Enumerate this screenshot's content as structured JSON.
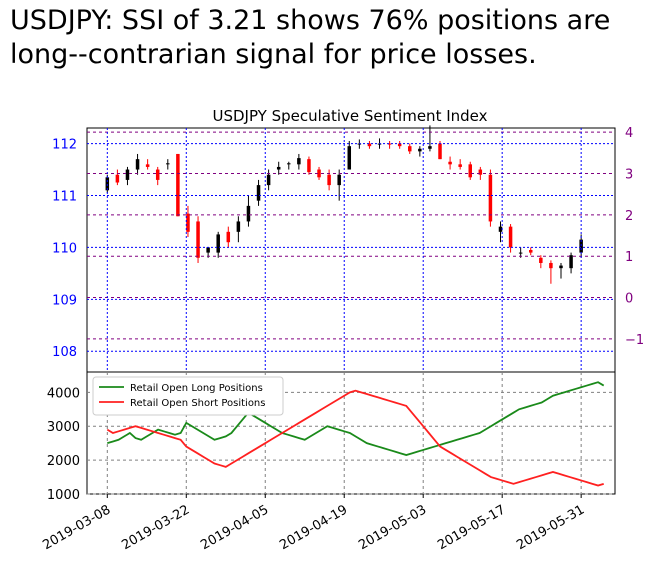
{
  "headline": "USDJPY: SSI of 3.21 shows 76% positions are long--contrarian signal for price losses.",
  "colors": {
    "price_axis": "#0000ff",
    "ssi_axis": "#800080",
    "up_candle": "#000000",
    "down_candle": "#ff0000",
    "ssi_positive": "#2ca02c",
    "ssi_negative": "#ff6b6b",
    "long_line": "#1a8a1a",
    "short_line": "#ff2020"
  },
  "chart_data": [
    {
      "type": "candlestick",
      "title": "USDJPY Speculative Sentiment Index",
      "left_axis": {
        "range": [
          107.6,
          112.3
        ],
        "ticks": [
          108,
          109,
          110,
          111,
          112
        ]
      },
      "right_axis": {
        "range": [
          -1.8,
          4.1
        ],
        "ticks": [
          -1,
          0,
          1,
          2,
          3,
          4
        ],
        "tick_labels": [
          "−1",
          "0",
          "1",
          "2",
          "3",
          "4"
        ]
      },
      "x_range_days": [
        -1.8,
        47.0
      ],
      "candles": [
        {
          "d": 1,
          "o": 111.1,
          "h": 111.4,
          "l": 111.05,
          "c": 111.35
        },
        {
          "d": 2,
          "o": 111.4,
          "h": 111.5,
          "l": 111.2,
          "c": 111.25
        },
        {
          "d": 3,
          "o": 111.3,
          "h": 111.55,
          "l": 111.2,
          "c": 111.5
        },
        {
          "d": 4,
          "o": 111.5,
          "h": 111.8,
          "l": 111.4,
          "c": 111.7
        },
        {
          "d": 5,
          "o": 111.6,
          "h": 111.7,
          "l": 111.5,
          "c": 111.55
        },
        {
          "d": 6,
          "o": 111.5,
          "h": 111.55,
          "l": 111.2,
          "c": 111.3
        },
        {
          "d": 7,
          "o": 111.6,
          "h": 111.7,
          "l": 111.5,
          "c": 111.62
        },
        {
          "d": 8,
          "o": 111.8,
          "h": 111.8,
          "l": 110.6,
          "c": 110.6
        },
        {
          "d": 9,
          "o": 110.65,
          "h": 110.8,
          "l": 110.2,
          "c": 110.3
        },
        {
          "d": 10,
          "o": 110.5,
          "h": 110.6,
          "l": 109.7,
          "c": 109.8
        },
        {
          "d": 11,
          "o": 109.9,
          "h": 110.0,
          "l": 109.8,
          "c": 110.0
        },
        {
          "d": 12,
          "o": 109.9,
          "h": 110.3,
          "l": 109.8,
          "c": 110.25
        },
        {
          "d": 13,
          "o": 110.3,
          "h": 110.4,
          "l": 110.0,
          "c": 110.1
        },
        {
          "d": 14,
          "o": 110.3,
          "h": 110.6,
          "l": 110.1,
          "c": 110.5
        },
        {
          "d": 15,
          "o": 110.5,
          "h": 111.0,
          "l": 110.4,
          "c": 110.8
        },
        {
          "d": 16,
          "o": 110.9,
          "h": 111.3,
          "l": 110.8,
          "c": 111.2
        },
        {
          "d": 17,
          "o": 111.2,
          "h": 111.5,
          "l": 111.1,
          "c": 111.4
        },
        {
          "d": 18,
          "o": 111.5,
          "h": 111.65,
          "l": 111.4,
          "c": 111.55
        },
        {
          "d": 19,
          "o": 111.6,
          "h": 111.65,
          "l": 111.5,
          "c": 111.62
        },
        {
          "d": 20,
          "o": 111.6,
          "h": 111.8,
          "l": 111.5,
          "c": 111.72
        },
        {
          "d": 21,
          "o": 111.7,
          "h": 111.75,
          "l": 111.4,
          "c": 111.45
        },
        {
          "d": 22,
          "o": 111.5,
          "h": 111.55,
          "l": 111.3,
          "c": 111.35
        },
        {
          "d": 23,
          "o": 111.4,
          "h": 111.5,
          "l": 111.1,
          "c": 111.2
        },
        {
          "d": 24,
          "o": 111.2,
          "h": 111.5,
          "l": 110.9,
          "c": 111.4
        },
        {
          "d": 25,
          "o": 111.5,
          "h": 112.05,
          "l": 111.5,
          "c": 111.95
        },
        {
          "d": 26,
          "o": 112.0,
          "h": 112.08,
          "l": 111.9,
          "c": 112.0
        },
        {
          "d": 27,
          "o": 112.0,
          "h": 112.05,
          "l": 111.9,
          "c": 111.95
        },
        {
          "d": 28,
          "o": 111.98,
          "h": 112.1,
          "l": 111.9,
          "c": 112.0
        },
        {
          "d": 29,
          "o": 112.0,
          "h": 112.05,
          "l": 111.9,
          "c": 111.98
        },
        {
          "d": 30,
          "o": 112.0,
          "h": 112.05,
          "l": 111.9,
          "c": 111.95
        },
        {
          "d": 31,
          "o": 111.95,
          "h": 112.0,
          "l": 111.8,
          "c": 111.85
        },
        {
          "d": 32,
          "o": 111.85,
          "h": 111.95,
          "l": 111.75,
          "c": 111.9
        },
        {
          "d": 33,
          "o": 111.9,
          "h": 112.35,
          "l": 111.85,
          "c": 111.95
        },
        {
          "d": 34,
          "o": 112.0,
          "h": 112.05,
          "l": 111.7,
          "c": 111.7
        },
        {
          "d": 35,
          "o": 111.65,
          "h": 111.75,
          "l": 111.5,
          "c": 111.6
        },
        {
          "d": 36,
          "o": 111.6,
          "h": 111.7,
          "l": 111.5,
          "c": 111.55
        },
        {
          "d": 37,
          "o": 111.6,
          "h": 111.65,
          "l": 111.3,
          "c": 111.35
        },
        {
          "d": 38,
          "o": 111.5,
          "h": 111.55,
          "l": 111.3,
          "c": 111.4
        },
        {
          "d": 39,
          "o": 111.4,
          "h": 111.5,
          "l": 110.4,
          "c": 110.5
        },
        {
          "d": 40,
          "o": 110.3,
          "h": 110.5,
          "l": 110.1,
          "c": 110.4
        },
        {
          "d": 41,
          "o": 110.4,
          "h": 110.45,
          "l": 109.9,
          "c": 110.0
        },
        {
          "d": 42,
          "o": 109.9,
          "h": 110.0,
          "l": 109.8,
          "c": 109.9
        },
        {
          "d": 43,
          "o": 109.95,
          "h": 110.0,
          "l": 109.85,
          "c": 109.9
        },
        {
          "d": 44,
          "o": 109.8,
          "h": 109.85,
          "l": 109.6,
          "c": 109.7
        },
        {
          "d": 45,
          "o": 109.7,
          "h": 109.75,
          "l": 109.3,
          "c": 109.6
        },
        {
          "d": 46,
          "o": 109.6,
          "h": 109.7,
          "l": 109.4,
          "c": 109.65
        },
        {
          "d": 47,
          "o": 109.6,
          "h": 109.9,
          "l": 109.5,
          "c": 109.85
        },
        {
          "d": 48,
          "o": 109.9,
          "h": 110.25,
          "l": 109.8,
          "c": 110.15
        }
      ],
      "ssi_bars": []
    },
    {
      "type": "line",
      "legend_position": "upper-left",
      "y_range": [
        1000,
        4600
      ],
      "y_ticks": [
        1000,
        2000,
        3000,
        4000
      ],
      "x_tick_days": [
        0,
        14,
        28,
        42,
        56,
        70,
        84
      ],
      "x_tick_labels": [
        "2019-03-08",
        "2019-03-22",
        "2019-04-05",
        "2019-04-19",
        "2019-05-03",
        "2019-05-17",
        "2019-05-31"
      ],
      "series": [
        {
          "name": "Retail Open Long Positions",
          "x": [
            0,
            1,
            2,
            3,
            4,
            5,
            6,
            7,
            8,
            9,
            10,
            11,
            12,
            13,
            14,
            15,
            16,
            17,
            18,
            19,
            20,
            21,
            22,
            23,
            24,
            25,
            26,
            27,
            28,
            29,
            30,
            31,
            32,
            33,
            34,
            35,
            36,
            37,
            38,
            39,
            40,
            41,
            42,
            43,
            44,
            45,
            46,
            47,
            48,
            49,
            50,
            51,
            52,
            53,
            54,
            55,
            56,
            57,
            58,
            59,
            60,
            61,
            62,
            63,
            64,
            65,
            66,
            67,
            68,
            69,
            70,
            71,
            72,
            73,
            74,
            75,
            76,
            77,
            78,
            79,
            80,
            81,
            82,
            83,
            84,
            85,
            86,
            87,
            88
          ],
          "values": [
            2500,
            2550,
            2600,
            2700,
            2800,
            2650,
            2600,
            2700,
            2800,
            2900,
            2850,
            2800,
            2750,
            2800,
            3100,
            3000,
            2900,
            2800,
            2700,
            2600,
            2650,
            2700,
            2800,
            3000,
            3200,
            3400,
            3300,
            3200,
            3100,
            3000,
            2900,
            2800,
            2750,
            2700,
            2650,
            2600,
            2700,
            2800,
            2900,
            3000,
            2950,
            2900,
            2850,
            2800,
            2700,
            2600,
            2500,
            2450,
            2400,
            2350,
            2300,
            2250,
            2200,
            2150,
            2200,
            2250,
            2300,
            2350,
            2400,
            2450,
            2500,
            2550,
            2600,
            2650,
            2700,
            2750,
            2800,
            2900,
            3000,
            3100,
            3200,
            3300,
            3400,
            3500,
            3550,
            3600,
            3650,
            3700,
            3800,
            3900,
            3950,
            4000,
            4050,
            4100,
            4150,
            4200,
            4250,
            4300,
            4200
          ]
        },
        {
          "name": "Retail Open Short Positions",
          "x": [
            0,
            1,
            2,
            3,
            4,
            5,
            6,
            7,
            8,
            9,
            10,
            11,
            12,
            13,
            14,
            15,
            16,
            17,
            18,
            19,
            20,
            21,
            22,
            23,
            24,
            25,
            26,
            27,
            28,
            29,
            30,
            31,
            32,
            33,
            34,
            35,
            36,
            37,
            38,
            39,
            40,
            41,
            42,
            43,
            44,
            45,
            46,
            47,
            48,
            49,
            50,
            51,
            52,
            53,
            54,
            55,
            56,
            57,
            58,
            59,
            60,
            61,
            62,
            63,
            64,
            65,
            66,
            67,
            68,
            69,
            70,
            71,
            72,
            73,
            74,
            75,
            76,
            77,
            78,
            79,
            80,
            81,
            82,
            83,
            84,
            85,
            86,
            87,
            88
          ],
          "values": [
            2900,
            2800,
            2850,
            2900,
            2950,
            3000,
            2950,
            2900,
            2850,
            2800,
            2750,
            2700,
            2650,
            2600,
            2400,
            2300,
            2200,
            2100,
            2000,
            1900,
            1850,
            1800,
            1900,
            2000,
            2100,
            2200,
            2300,
            2400,
            2500,
            2600,
            2700,
            2800,
            2900,
            3000,
            3100,
            3200,
            3300,
            3400,
            3500,
            3600,
            3700,
            3800,
            3900,
            4000,
            4050,
            4000,
            3950,
            3900,
            3850,
            3800,
            3750,
            3700,
            3650,
            3600,
            3400,
            3200,
            3000,
            2800,
            2600,
            2400,
            2300,
            2200,
            2100,
            2000,
            1900,
            1800,
            1700,
            1600,
            1500,
            1450,
            1400,
            1350,
            1300,
            1350,
            1400,
            1450,
            1500,
            1550,
            1600,
            1650,
            1600,
            1550,
            1500,
            1450,
            1400,
            1350,
            1300,
            1250,
            1300
          ]
        }
      ]
    }
  ]
}
